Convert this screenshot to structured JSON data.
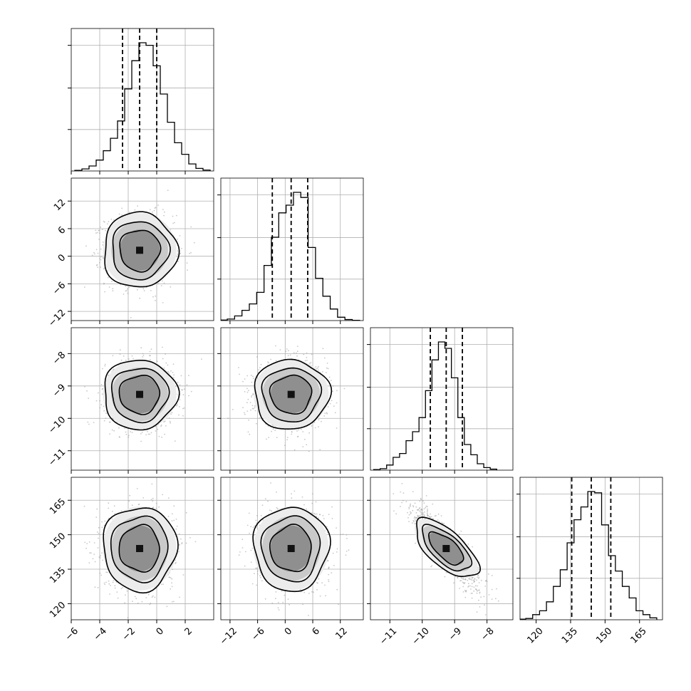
{
  "chart_data": {
    "type": "corner",
    "grid": true,
    "levels": [
      0.5,
      0.75,
      0.9
    ],
    "parameters": [
      {
        "range": [
          -6,
          4
        ],
        "ticks": [
          -6,
          -4,
          -2,
          0,
          2
        ],
        "tick_labels": [
          "−6",
          "−4",
          "−2",
          "0",
          "2"
        ],
        "quantiles": [
          -2.4,
          -1.2,
          0.0
        ],
        "mean": -1.2,
        "sd": 1.2
      },
      {
        "range": [
          -14,
          17
        ],
        "ticks": [
          -12,
          -6,
          0,
          6,
          12
        ],
        "tick_labels": [
          "−12",
          "−6",
          "0",
          "6",
          "12"
        ],
        "quantiles": [
          -2.8,
          1.3,
          4.9
        ],
        "mean": 1.3,
        "sd": 3.8
      },
      {
        "range": [
          -11.6,
          -7.2
        ],
        "ticks": [
          -11,
          -10,
          -9,
          -8
        ],
        "tick_labels": [
          "−11",
          "−10",
          "−9",
          "−8"
        ],
        "quantiles": [
          -9.75,
          -9.26,
          -8.76
        ],
        "mean": -9.26,
        "sd": 0.5
      },
      {
        "range": [
          113,
          175
        ],
        "ticks": [
          120,
          135,
          150,
          165
        ],
        "tick_labels": [
          "120",
          "135",
          "150",
          "165"
        ],
        "quantiles": [
          135.5,
          144.0,
          152.5
        ],
        "mean": 144.0,
        "sd": 8.5
      }
    ],
    "histograms": [
      {
        "param": 0,
        "bins": [
          -5.5,
          -5.0,
          -4.5,
          -4.0,
          -3.5,
          -3.0,
          -2.5,
          -2.0,
          -1.5,
          -1.0,
          -0.5,
          0.0,
          0.5,
          1.0,
          1.5,
          2.0,
          2.5,
          3.0,
          3.5
        ],
        "counts": [
          0.005,
          0.016,
          0.039,
          0.085,
          0.158,
          0.255,
          0.39,
          0.64,
          0.86,
          1.0,
          0.98,
          0.82,
          0.6,
          0.38,
          0.22,
          0.13,
          0.055,
          0.02,
          0.007
        ]
      },
      {
        "param": 1,
        "bins": [
          -13.4,
          -11.8,
          -10.2,
          -8.6,
          -7.0,
          -5.4,
          -3.8,
          -2.2,
          -0.6,
          1.0,
          2.6,
          4.2,
          5.8,
          7.4,
          9.0,
          10.6,
          12.2,
          13.8,
          15.4
        ],
        "counts": [
          0.004,
          0.012,
          0.036,
          0.08,
          0.13,
          0.22,
          0.43,
          0.65,
          0.84,
          0.9,
          1.0,
          0.96,
          0.57,
          0.33,
          0.19,
          0.09,
          0.026,
          0.008,
          0.002
        ]
      },
      {
        "param": 2,
        "bins": [
          -11.4,
          -11.2,
          -11.0,
          -10.8,
          -10.6,
          -10.4,
          -10.2,
          -10.0,
          -9.8,
          -9.6,
          -9.4,
          -9.2,
          -9.0,
          -8.8,
          -8.6,
          -8.4,
          -8.2,
          -8.0,
          -7.8
        ],
        "counts": [
          0.005,
          0.012,
          0.04,
          0.1,
          0.13,
          0.23,
          0.3,
          0.41,
          0.62,
          0.86,
          1.0,
          0.95,
          0.72,
          0.41,
          0.2,
          0.12,
          0.05,
          0.02,
          0.008
        ]
      },
      {
        "param": 3,
        "bins": [
          114,
          117,
          120,
          123,
          126,
          129,
          132,
          135,
          138,
          141,
          144,
          147,
          150,
          153,
          156,
          159,
          162,
          165,
          168,
          171
        ],
        "counts": [
          0.005,
          0.01,
          0.04,
          0.07,
          0.14,
          0.26,
          0.39,
          0.6,
          0.78,
          0.88,
          1.0,
          0.99,
          0.74,
          0.5,
          0.38,
          0.26,
          0.17,
          0.07,
          0.04,
          0.015
        ]
      }
    ],
    "pairs": [
      {
        "x_param": 0,
        "y_param": 1,
        "correlation": 0.0
      },
      {
        "x_param": 0,
        "y_param": 2,
        "correlation": 0.0
      },
      {
        "x_param": 0,
        "y_param": 3,
        "correlation": 0.0
      },
      {
        "x_param": 1,
        "y_param": 2,
        "correlation": 0.0
      },
      {
        "x_param": 1,
        "y_param": 3,
        "correlation": 0.0
      },
      {
        "x_param": 2,
        "y_param": 3,
        "correlation": -0.85
      }
    ]
  }
}
